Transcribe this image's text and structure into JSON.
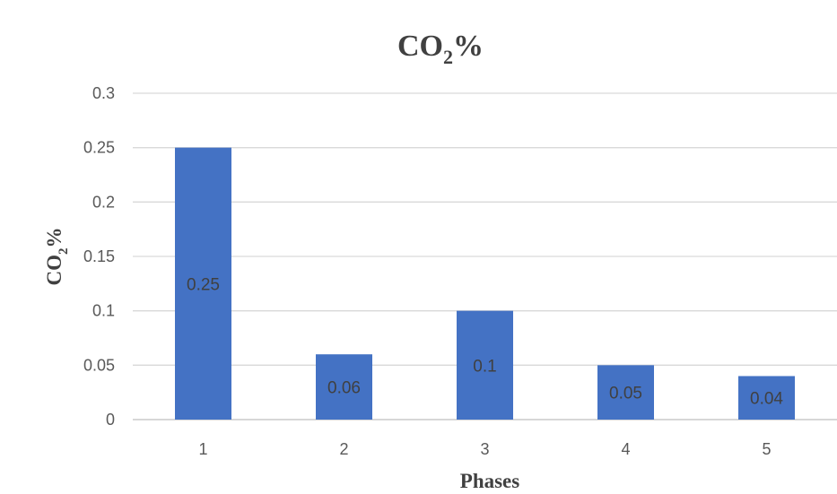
{
  "chart_data": {
    "type": "bar",
    "title_main": "CO",
    "title_sub": "2",
    "title_suffix": "%",
    "xlabel": "Phases",
    "ylabel_main": "CO",
    "ylabel_sub": "2",
    "ylabel_suffix": "%",
    "categories": [
      "1",
      "2",
      "3",
      "4",
      "5"
    ],
    "values": [
      0.25,
      0.06,
      0.1,
      0.05,
      0.04
    ],
    "data_labels": [
      "0.25",
      "0.06",
      "0.1",
      "0.05",
      "0.04"
    ],
    "ylim": [
      0,
      0.3
    ],
    "yticks": [
      0,
      0.05,
      0.1,
      0.15,
      0.2,
      0.25,
      0.3
    ],
    "ytick_labels": [
      "0",
      "0.05",
      "0.1",
      "0.15",
      "0.2",
      "0.25",
      "0.3"
    ],
    "grid": true,
    "legend": "none",
    "bar_color": "#4472C4"
  }
}
